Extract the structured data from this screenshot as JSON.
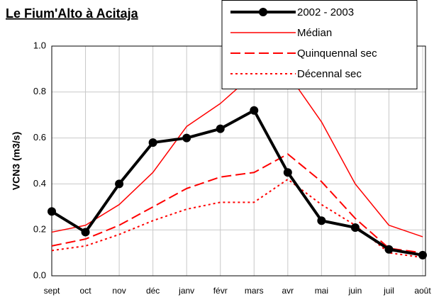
{
  "chart_data": {
    "type": "line",
    "title": "Le Fium'Alto à Acitaja",
    "y_label": "VCN3 (m3/s)",
    "categories": [
      "sept",
      "oct",
      "nov",
      "déc",
      "janv",
      "févr",
      "mars",
      "avr",
      "mai",
      "juin",
      "juil",
      "août"
    ],
    "series": [
      {
        "name": "2002 - 2003",
        "color": "#000000",
        "line_style": "solid",
        "marker": "circle",
        "values": [
          0.28,
          0.19,
          0.4,
          0.58,
          0.6,
          0.64,
          0.72,
          0.45,
          0.24,
          0.21,
          0.115,
          0.09
        ]
      },
      {
        "name": "Médian",
        "color": "#ff0000",
        "line_style": "solid",
        "values": [
          0.19,
          0.22,
          0.31,
          0.45,
          0.65,
          0.75,
          0.88,
          0.88,
          0.67,
          0.4,
          0.22,
          0.17
        ]
      },
      {
        "name": "Quinquennal sec",
        "color": "#ff0000",
        "line_style": "dashed",
        "values": [
          0.13,
          0.16,
          0.22,
          0.3,
          0.38,
          0.43,
          0.45,
          0.53,
          0.41,
          0.25,
          0.12,
          0.1
        ]
      },
      {
        "name": "Décennal sec",
        "color": "#ff0000",
        "line_style": "dotted",
        "values": [
          0.11,
          0.13,
          0.18,
          0.24,
          0.29,
          0.32,
          0.32,
          0.42,
          0.31,
          0.22,
          0.1,
          0.08
        ]
      }
    ],
    "ylim": [
      0,
      1
    ],
    "yticks": [
      {
        "value": 0,
        "label": "0.0"
      },
      0.2,
      0.4,
      0.6,
      0.8,
      {
        "value": 1,
        "label": "1.0"
      }
    ],
    "grid": true,
    "legend": "top-right"
  }
}
